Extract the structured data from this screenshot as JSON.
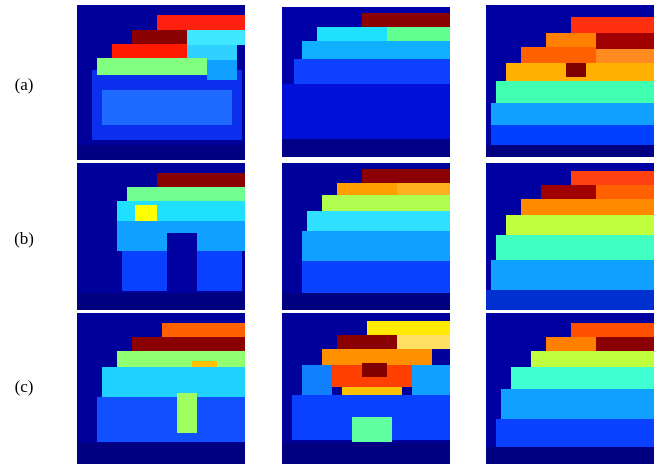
{
  "row_labels": [
    "(a)",
    "(b)",
    "(c)"
  ]
}
